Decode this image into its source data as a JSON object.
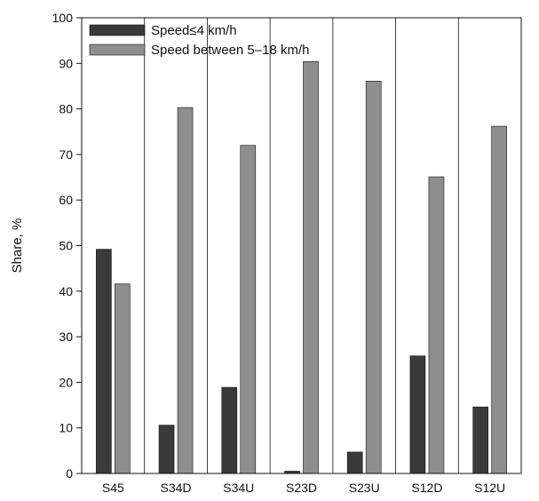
{
  "chart_data": {
    "type": "bar",
    "title": "",
    "xlabel": "",
    "ylabel": "Share, %",
    "ylim": [
      0,
      100
    ],
    "yticks": [
      0,
      10,
      20,
      30,
      40,
      50,
      60,
      70,
      80,
      90,
      100
    ],
    "grid": "vertical lines between categories",
    "legend_position": "top-left",
    "categories": [
      "S45",
      "S34D",
      "S34U",
      "S23D",
      "S23U",
      "S12D",
      "S12U"
    ],
    "series": [
      {
        "name": "Speed≤4 km/h",
        "color": "#3a3a3a",
        "values": [
          49.2,
          10.6,
          18.9,
          0.5,
          4.7,
          25.8,
          14.6
        ]
      },
      {
        "name": "Speed between 5–18 km/h",
        "color": "#8e8e8e",
        "values": [
          41.6,
          80.3,
          72.0,
          90.4,
          86.1,
          65.1,
          76.2
        ]
      }
    ]
  }
}
